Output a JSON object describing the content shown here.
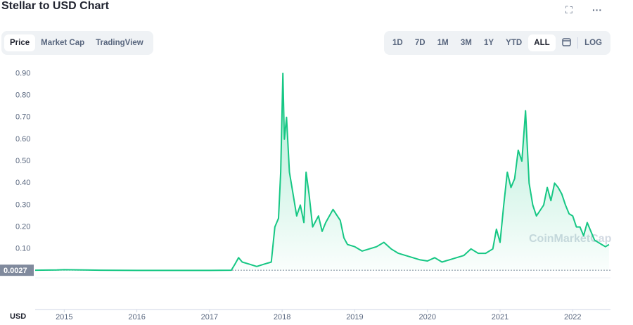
{
  "ui": {
    "title": "Stellar to USD Chart",
    "tabs": [
      "Price",
      "Market Cap",
      "TradingView"
    ],
    "active_tab": 0,
    "ranges": [
      "1D",
      "7D",
      "1M",
      "3M",
      "1Y",
      "YTD",
      "ALL"
    ],
    "active_range": 6,
    "log": "LOG"
  },
  "chart_data": {
    "type": "line",
    "watermark": "CoinMarketCap",
    "currency_label": "USD",
    "current_price": 0.0027,
    "x": [
      2014.6,
      2014.9,
      2015.0,
      2015.5,
      2016.0,
      2016.5,
      2017.0,
      2017.3,
      2017.35,
      2017.4,
      2017.45,
      2017.55,
      2017.65,
      2017.75,
      2017.85,
      2017.9,
      2017.95,
      2017.98,
      2018.01,
      2018.03,
      2018.06,
      2018.1,
      2018.15,
      2018.2,
      2018.25,
      2018.3,
      2018.33,
      2018.37,
      2018.42,
      2018.5,
      2018.55,
      2018.6,
      2018.7,
      2018.8,
      2018.85,
      2018.9,
      2019.0,
      2019.1,
      2019.2,
      2019.3,
      2019.4,
      2019.5,
      2019.6,
      2019.7,
      2019.8,
      2019.9,
      2020.0,
      2020.1,
      2020.2,
      2020.3,
      2020.4,
      2020.5,
      2020.6,
      2020.7,
      2020.8,
      2020.9,
      2020.95,
      2021.0,
      2021.05,
      2021.1,
      2021.15,
      2021.2,
      2021.25,
      2021.3,
      2021.35,
      2021.4,
      2021.45,
      2021.5,
      2021.6,
      2021.65,
      2021.7,
      2021.75,
      2021.8,
      2021.85,
      2021.9,
      2021.95,
      2022.0,
      2022.05,
      2022.1,
      2022.15,
      2022.2,
      2022.25,
      2022.3,
      2022.4,
      2022.45,
      2022.5
    ],
    "series": [
      {
        "name": "Price",
        "color": "#16c784",
        "values": [
          0.003,
          0.004,
          0.005,
          0.003,
          0.002,
          0.002,
          0.002,
          0.003,
          0.03,
          0.06,
          0.04,
          0.03,
          0.02,
          0.03,
          0.04,
          0.2,
          0.24,
          0.45,
          0.9,
          0.6,
          0.7,
          0.45,
          0.35,
          0.25,
          0.3,
          0.22,
          0.45,
          0.35,
          0.2,
          0.25,
          0.18,
          0.22,
          0.28,
          0.23,
          0.15,
          0.12,
          0.11,
          0.09,
          0.1,
          0.11,
          0.13,
          0.1,
          0.08,
          0.07,
          0.06,
          0.05,
          0.045,
          0.06,
          0.04,
          0.05,
          0.06,
          0.07,
          0.1,
          0.08,
          0.08,
          0.1,
          0.19,
          0.13,
          0.3,
          0.45,
          0.38,
          0.42,
          0.55,
          0.5,
          0.73,
          0.4,
          0.3,
          0.25,
          0.3,
          0.38,
          0.32,
          0.4,
          0.38,
          0.35,
          0.3,
          0.26,
          0.25,
          0.2,
          0.2,
          0.16,
          0.22,
          0.18,
          0.14,
          0.12,
          0.11,
          0.12
        ]
      }
    ],
    "xlim": [
      2014.6,
      2022.52
    ],
    "xticks": [
      2015,
      2016,
      2017,
      2018,
      2019,
      2020,
      2021,
      2022
    ],
    "ylim": [
      0,
      0.93
    ],
    "yticks": [
      {
        "value": 0.1,
        "label": "0.10"
      },
      {
        "value": 0.2,
        "label": "0.20"
      },
      {
        "value": 0.3,
        "label": "0.30"
      },
      {
        "value": 0.4,
        "label": "0.40"
      },
      {
        "value": 0.5,
        "label": "0.50"
      },
      {
        "value": 0.6,
        "label": "0.60"
      },
      {
        "value": 0.7,
        "label": "0.70"
      },
      {
        "value": 0.8,
        "label": "0.80"
      },
      {
        "value": 0.9,
        "label": "0.90"
      }
    ]
  }
}
